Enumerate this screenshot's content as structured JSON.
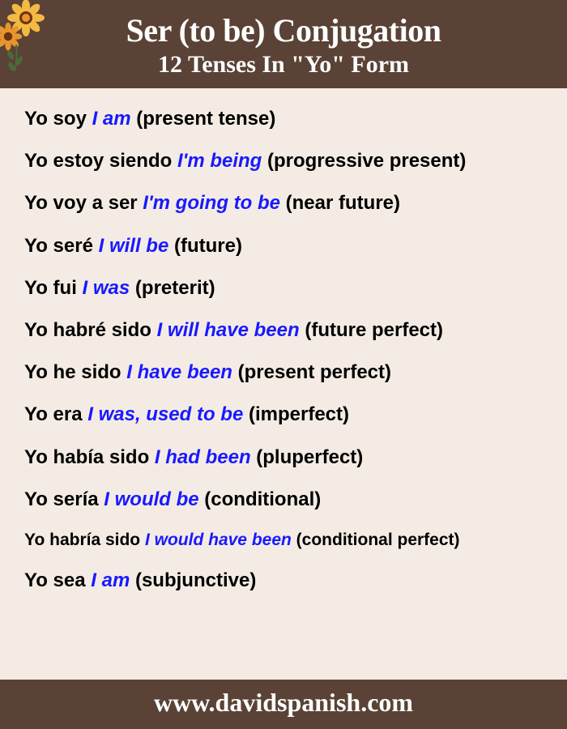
{
  "colors": {
    "header_bg": "#5a4236",
    "content_bg": "#f4ece4",
    "footer_bg": "#5a4236",
    "title_color": "#ffffff",
    "subtitle_color": "#ffffff",
    "footer_color": "#ffffff",
    "spanish_color": "#000000",
    "english_color": "#1919ff",
    "flower_orange": "#e8952e",
    "flower_brown": "#6b3410",
    "flower_petal": "#f4b942",
    "leaf_green": "#4a6b3a"
  },
  "typography": {
    "title_size": "40px",
    "subtitle_size": "30px",
    "body_size": "24px",
    "small_body_size": "22px",
    "footer_size": "32px"
  },
  "header": {
    "title": "Ser (to be) Conjugation",
    "subtitle": "12 Tenses In \"Yo\" Form"
  },
  "tenses": [
    {
      "spanish": "Yo soy ",
      "english": "I am ",
      "label": " (present tense)",
      "size": "24px"
    },
    {
      "spanish": "Yo estoy siendo ",
      "english": "I'm being ",
      "label": "(progressive present)",
      "size": "24px"
    },
    {
      "spanish": "Yo voy a ser ",
      "english": "I'm going to be ",
      "label": " (near future)",
      "size": "24px"
    },
    {
      "spanish": "Yo seré ",
      "english": "I will be ",
      "label": "(future)",
      "size": "24px"
    },
    {
      "spanish": "Yo fui ",
      "english": "I was ",
      "label": "(preterit)",
      "size": "24px"
    },
    {
      "spanish": "Yo habré sido ",
      "english": "I will have been ",
      "label": "(future perfect)",
      "size": "24px"
    },
    {
      "spanish": "Yo he sido ",
      "english": "I have been ",
      "label": "(present perfect)",
      "size": "24px"
    },
    {
      "spanish": "Yo era ",
      "english": "I was, used to be ",
      "label": "(imperfect)",
      "size": "24px"
    },
    {
      "spanish": "Yo había sido ",
      "english": "I had been ",
      "label": "(pluperfect)",
      "size": "24px"
    },
    {
      "spanish": "Yo sería ",
      "english": "I would be ",
      "label": " (conditional)",
      "size": "24px"
    },
    {
      "spanish": "Yo habría sido ",
      "english": "I would have been ",
      "label": " (conditional perfect)",
      "size": "21px"
    },
    {
      "spanish": "Yo sea ",
      "english": "I am ",
      "label": " (subjunctive)",
      "size": "24px"
    }
  ],
  "footer": {
    "url": "www.davidspanish.com"
  }
}
